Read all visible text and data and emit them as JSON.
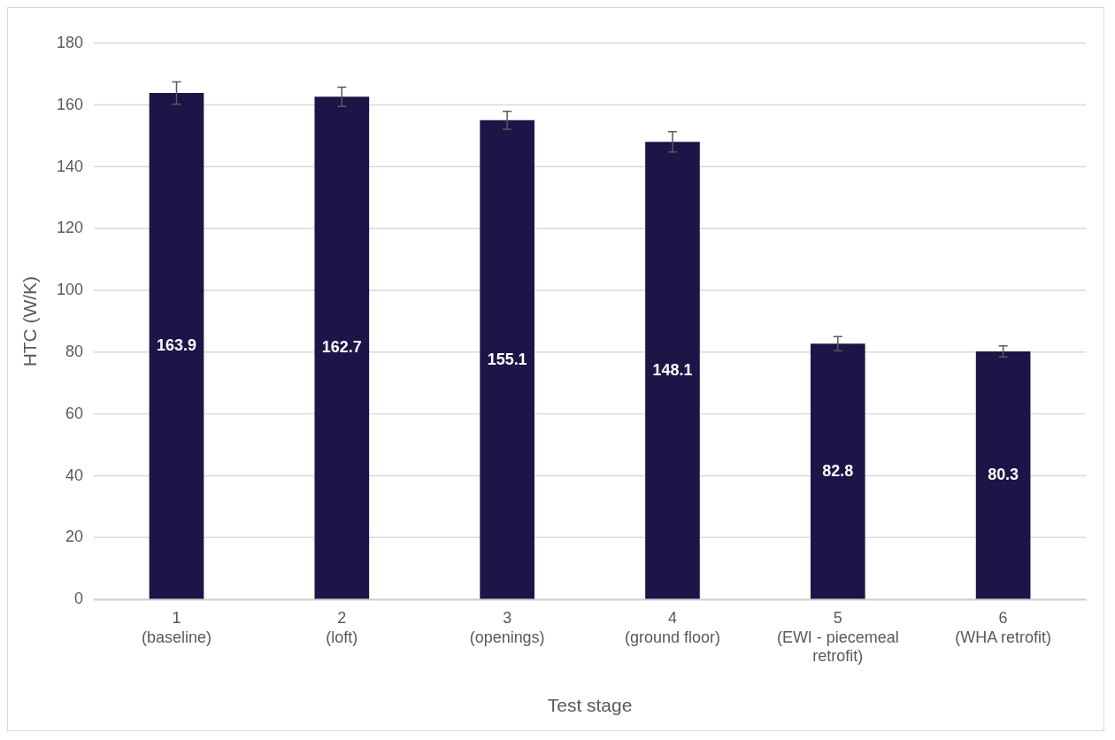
{
  "chart_data": {
    "type": "bar",
    "xlabel": "Test stage",
    "ylabel": "HTC (W/K)",
    "categories": [
      "1\n(baseline)",
      "2\n(loft)",
      "3\n(openings)",
      "4\n(ground floor)",
      "5\n(EWI - piecemeal\nretrofit)",
      "6\n(WHA retrofit)"
    ],
    "values": [
      163.9,
      162.7,
      155.1,
      148.1,
      82.8,
      80.3
    ],
    "errors": [
      3.6,
      3.1,
      2.9,
      3.3,
      2.3,
      1.8
    ],
    "color": "#1e1447",
    "ylim": [
      0,
      180
    ],
    "yticks": [
      0,
      20,
      40,
      60,
      80,
      100,
      120,
      140,
      160,
      180
    ],
    "grid": "y",
    "legend": false,
    "data_labels": true
  }
}
